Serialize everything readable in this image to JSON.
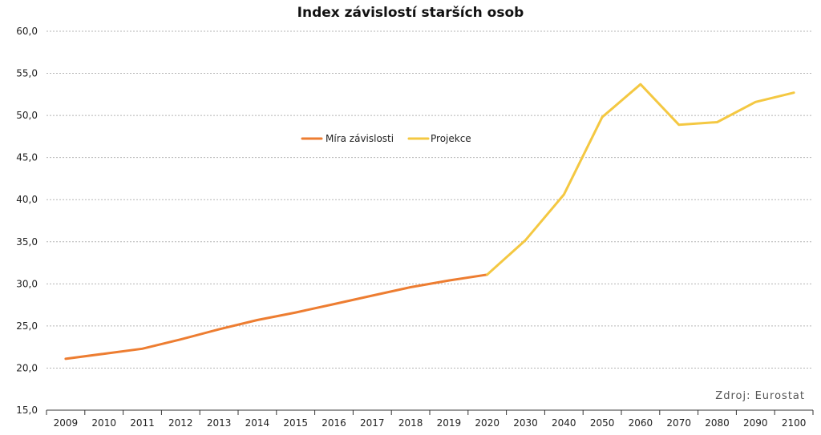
{
  "chart_data": {
    "type": "line",
    "title": "Index závislostí starších osob",
    "source": "Zdroj: Eurostat",
    "categories": [
      "2009",
      "2010",
      "2011",
      "2012",
      "2013",
      "2014",
      "2015",
      "2016",
      "2017",
      "2018",
      "2019",
      "2020",
      "2030",
      "2040",
      "2050",
      "2060",
      "2070",
      "2080",
      "2090",
      "2100"
    ],
    "series": [
      {
        "name": "Míra závislosti",
        "color": "#ed7d31",
        "values": [
          21.1,
          21.7,
          22.3,
          23.4,
          24.6,
          25.7,
          26.6,
          27.6,
          28.6,
          29.6,
          30.4,
          31.1,
          null,
          null,
          null,
          null,
          null,
          null,
          null,
          null
        ]
      },
      {
        "name": "Projekce",
        "color": "#f4c842",
        "values": [
          null,
          null,
          null,
          null,
          null,
          null,
          null,
          null,
          null,
          null,
          null,
          31.1,
          35.2,
          40.6,
          49.8,
          53.7,
          48.9,
          49.2,
          51.6,
          52.7
        ]
      }
    ],
    "ylim": [
      15,
      60
    ],
    "yticks": [
      "15,0",
      "20,0",
      "25,0",
      "30,0",
      "35,0",
      "40,0",
      "45,0",
      "50,0",
      "55,0",
      "60,0"
    ],
    "ytick_values": [
      15,
      20,
      25,
      30,
      35,
      40,
      45,
      50,
      55,
      60
    ],
    "grid": true,
    "legend_position": "upper-center"
  }
}
